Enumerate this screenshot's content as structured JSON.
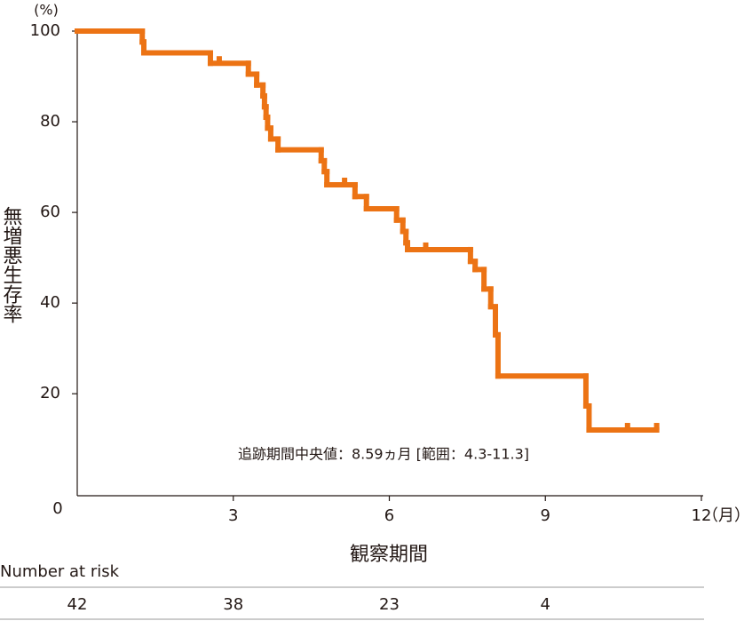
{
  "chart_data": {
    "type": "step",
    "y_unit": "(%)",
    "x_unit": "（月）",
    "ylabel": "無増悪生存率",
    "xlabel": "観察期間",
    "annotation": "追跡期間中央値：8.59ヵ月 [範囲：4.3-11.3]",
    "color": "#ec7314",
    "x": [
      0,
      1.25,
      1.28,
      2.56,
      3.29,
      3.45,
      3.57,
      3.6,
      3.63,
      3.66,
      3.72,
      3.86,
      4.69,
      4.75,
      4.8,
      5.34,
      5.56,
      6.14,
      6.26,
      6.32,
      6.35,
      7.56,
      7.65,
      7.82,
      7.95,
      8.04,
      8.09,
      9.78,
      9.84
    ],
    "values": [
      100,
      97.6,
      95.2,
      92.9,
      90.5,
      88.1,
      85.7,
      83.3,
      81.0,
      78.6,
      76.2,
      73.8,
      71.4,
      69.0,
      66.1,
      63.5,
      60.8,
      58.3,
      55.8,
      53.3,
      51.8,
      49.2,
      47.4,
      43.1,
      39.2,
      33.0,
      23.9,
      17.3,
      12.0
    ],
    "censored_x": [
      2.73,
      5.14,
      6.7,
      10.58,
      11.14
    ],
    "censored_values": [
      92.9,
      66.1,
      51.8,
      12.0,
      12.0
    ],
    "xlim": [
      0,
      12
    ],
    "xticks": [
      0,
      3,
      6,
      9,
      12
    ],
    "ylim": [
      -2.5,
      100
    ],
    "yticks": [
      20,
      40,
      60,
      80,
      100
    ],
    "risk_title": "Number at risk",
    "risk_values": [
      42,
      38,
      23,
      4
    ]
  }
}
